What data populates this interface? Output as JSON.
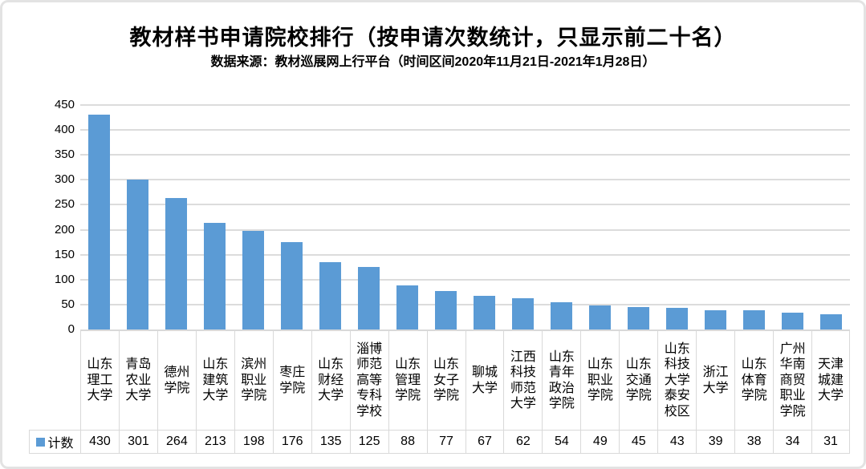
{
  "chart_data": {
    "type": "bar",
    "title": "教材样书申请院校排行（按申请次数统计，只显示前二十名）",
    "subtitle": "数据来源：教材巡展网上行平台（时间区间2020年11月21日-2021年1月28日）",
    "categories": [
      "山东理工大学",
      "青岛农业大学",
      "德州学院",
      "山东建筑大学",
      "滨州职业学院",
      "枣庄学院",
      "山东财经大学",
      "淄博师范高等专科学校",
      "山东管理学院",
      "山东女子学院",
      "聊城大学",
      "江西科技师范大学",
      "山东青年政治学院",
      "山东职业学院",
      "山东交通学院",
      "山东科技大学泰安校区",
      "浙江大学",
      "山东体育学院",
      "广州华南商贸职业学院",
      "天津城建大学"
    ],
    "series": [
      {
        "name": "计数",
        "values": [
          430,
          301,
          264,
          213,
          198,
          176,
          135,
          125,
          88,
          77,
          67,
          62,
          54,
          49,
          45,
          43,
          39,
          38,
          34,
          31
        ]
      }
    ],
    "xlabel": "",
    "ylabel": "",
    "ylim": [
      0,
      450
    ],
    "yticks": [
      0,
      50,
      100,
      150,
      200,
      250,
      300,
      350,
      400,
      450
    ],
    "grid": true,
    "legend_position": "data-table-left"
  },
  "colors": {
    "bar": "#5b9bd5",
    "gridline": "#dcdcdc",
    "table_border": "#d9d9d9",
    "text": "#000000",
    "frame_border": "#e3e3e3"
  }
}
